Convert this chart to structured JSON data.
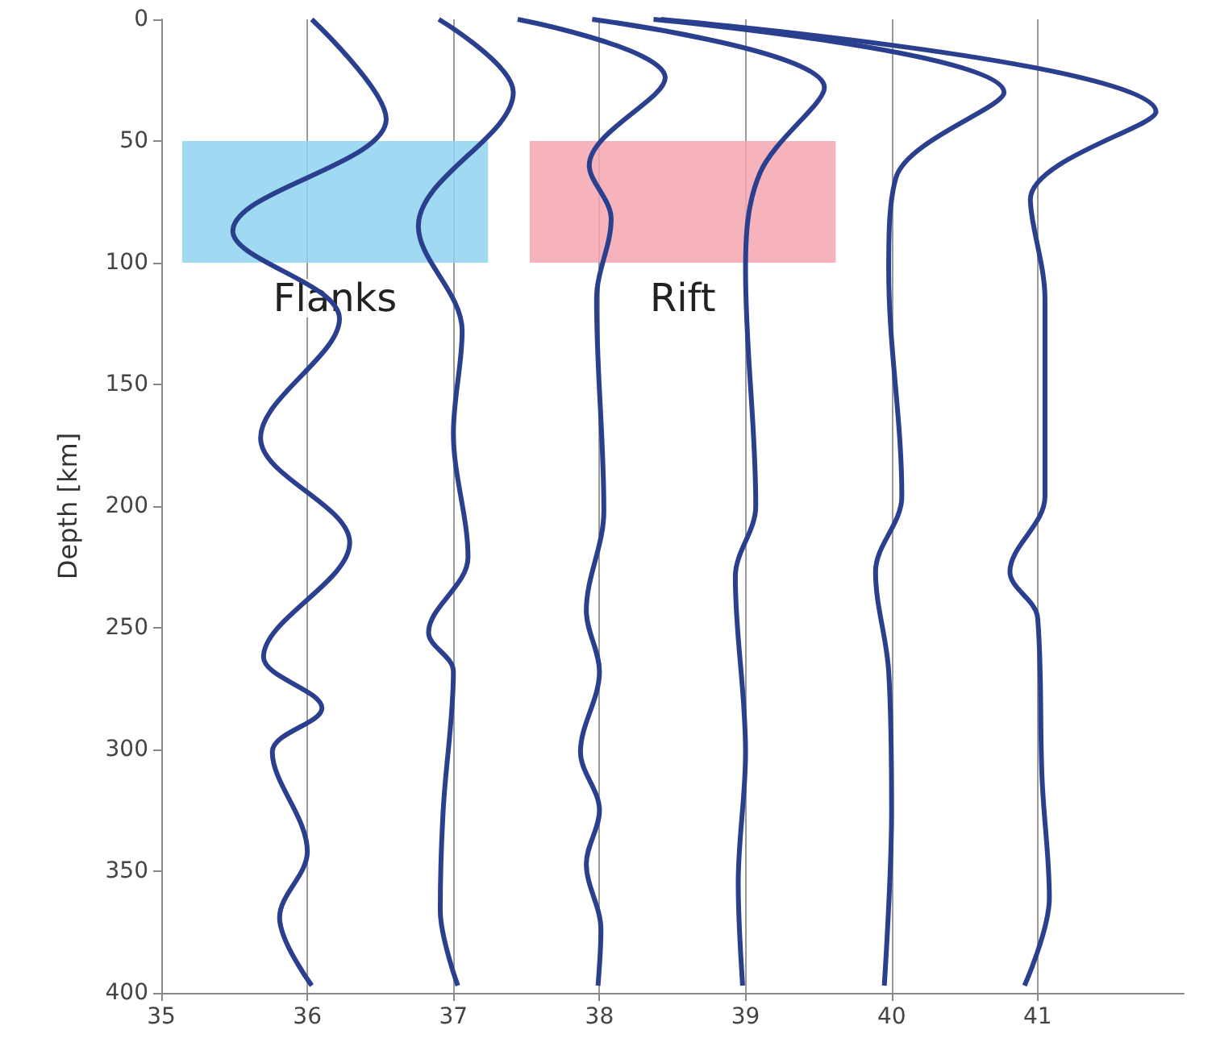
{
  "chart_data": {
    "type": "line",
    "ylabel": "Depth [km]",
    "xlim": [
      35,
      42
    ],
    "xticks": [
      35,
      36,
      37,
      38,
      39,
      40,
      41
    ],
    "ylim": [
      400,
      0
    ],
    "yticks": [
      0,
      50,
      100,
      150,
      200,
      250,
      300,
      350,
      400
    ],
    "grid": "x",
    "marker": "none",
    "series": [
      {
        "color": "#2b3f8f",
        "x": [
          36.03,
          36.54,
          35.49,
          36.22,
          35.68,
          36.29,
          35.7,
          36.1,
          35.76,
          36.0,
          35.81,
          36.03
        ],
        "values": [
          0,
          41,
          87,
          123,
          172,
          215,
          262,
          283,
          301,
          342,
          369,
          397
        ]
      },
      {
        "color": "#2b3f8f",
        "x": [
          36.9,
          37.41,
          36.76,
          37.06,
          37.0,
          37.1,
          36.83,
          37.0,
          36.93,
          36.91,
          37.03
        ],
        "values": [
          0,
          30,
          85,
          128,
          170,
          221,
          252,
          268,
          325,
          366,
          397
        ]
      },
      {
        "color": "#2b3f8f",
        "x": [
          37.44,
          38.45,
          37.93,
          38.08,
          37.98,
          38.03,
          37.91,
          38.0,
          37.87,
          38.0,
          37.91,
          38.01,
          37.99
        ],
        "values": [
          0,
          24,
          60,
          82,
          115,
          202,
          243,
          268,
          301,
          325,
          347,
          374,
          397
        ]
      },
      {
        "color": "#2b3f8f",
        "x": [
          37.95,
          39.54,
          39.1,
          39.0,
          39.07,
          38.93,
          39.0,
          38.95,
          38.98
        ],
        "values": [
          0,
          28,
          63,
          103,
          200,
          229,
          301,
          355,
          397
        ]
      },
      {
        "color": "#2b3f8f",
        "x": [
          38.37,
          40.77,
          40.03,
          39.98,
          40.07,
          39.89,
          39.98,
          40.0,
          39.95
        ],
        "values": [
          0,
          30,
          65,
          103,
          196,
          227,
          268,
          325,
          397
        ]
      },
      {
        "color": "#2b3f8f",
        "x": [
          38.42,
          41.81,
          40.95,
          41.05,
          41.05,
          40.81,
          41.0,
          41.03,
          41.08,
          40.91
        ],
        "values": [
          0,
          38,
          74,
          115,
          196,
          227,
          246,
          312,
          361,
          397
        ]
      }
    ],
    "bands": [
      {
        "axis": "y",
        "from": 50,
        "to": 100,
        "label": "Flanks",
        "color": "#8fd3f0"
      },
      {
        "axis": "y",
        "from": 50,
        "to": 100,
        "label": "Rift",
        "color": "#f4a6b0"
      }
    ]
  }
}
